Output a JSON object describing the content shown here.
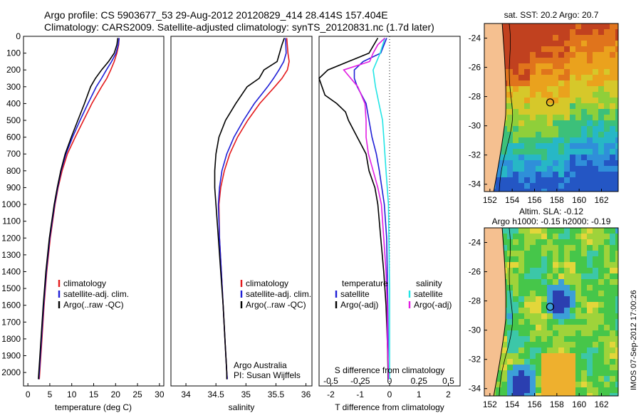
{
  "header": {
    "line1": "Argo profile: CS 5903677_53 29-Aug-2012 20120829_414 28.414S 157.404E",
    "line2": "Climatology: CARS2009. Satellite-adjusted climatology: synTS_20120831.nc (1.7d later)"
  },
  "colors": {
    "climatology": "#e41a1c",
    "satellite": "#1f1fd6",
    "argo": "#000000",
    "sat_salinity": "#22e5e5",
    "argo_salinity": "#e21ee2",
    "land": "#f5c090",
    "ocean_warm": "#e9a21a"
  },
  "chart_data": [
    {
      "type": "line",
      "name": "temperature_profile",
      "xlabel": "temperature (deg C)",
      "ylabel": "",
      "xlim": [
        -1,
        31
      ],
      "ylim": [
        0,
        2080
      ],
      "y_inverted": true,
      "xticks": [
        0,
        5,
        10,
        15,
        20,
        25,
        30
      ],
      "yticks": [
        0,
        100,
        200,
        300,
        400,
        500,
        600,
        700,
        800,
        900,
        1000,
        1100,
        1200,
        1300,
        1400,
        1500,
        1600,
        1700,
        1800,
        1900,
        2000
      ],
      "legend": [
        "climatology",
        "satellite-adj. clim.",
        "Argo(..raw -QC)"
      ],
      "series": [
        {
          "name": "climatology",
          "y": [
            10,
            50,
            100,
            150,
            200,
            250,
            300,
            400,
            500,
            600,
            700,
            800,
            900,
            1000,
            1200,
            1400,
            1600,
            1800,
            2000,
            2040
          ],
          "x": [
            20.8,
            20.7,
            20.3,
            19.7,
            18.9,
            18.0,
            16.8,
            14.6,
            12.7,
            10.8,
            9.0,
            7.8,
            6.9,
            6.2,
            5.1,
            4.3,
            3.7,
            3.2,
            2.7,
            2.6
          ]
        },
        {
          "name": "satellite",
          "y": [
            10,
            50,
            100,
            150,
            200,
            250,
            300,
            400,
            500,
            600,
            700,
            800,
            900,
            1000,
            1200,
            1400,
            1600,
            1800,
            2000,
            2040
          ],
          "x": [
            20.8,
            20.6,
            20.1,
            19.1,
            17.9,
            16.8,
            15.6,
            13.7,
            11.9,
            10.2,
            8.7,
            7.6,
            6.8,
            6.1,
            5.0,
            4.2,
            3.6,
            3.1,
            2.6,
            2.5
          ]
        },
        {
          "name": "argo",
          "y": [
            10,
            50,
            100,
            150,
            200,
            250,
            300,
            400,
            500,
            600,
            700,
            800,
            900,
            1000,
            1200,
            1400,
            1600,
            1800,
            2000,
            2040
          ],
          "x": [
            20.5,
            20.3,
            19.7,
            18.4,
            16.8,
            15.4,
            14.3,
            12.9,
            11.4,
            9.9,
            8.5,
            7.5,
            6.7,
            6.0,
            4.9,
            4.1,
            3.5,
            3.0,
            2.5,
            2.4
          ]
        }
      ]
    },
    {
      "type": "line",
      "name": "salinity_profile",
      "xlabel": "salinity",
      "ylabel": "",
      "xlim": [
        33.75,
        36.1
      ],
      "ylim": [
        0,
        2080
      ],
      "y_inverted": true,
      "xticks": [
        34,
        34.5,
        35,
        35.5,
        36
      ],
      "legend": [
        "climatology",
        "satellite-adj. clim.",
        "Argo(..raw -QC)"
      ],
      "annotation": [
        "Argo Australia",
        "PI: Susan Wijffels"
      ],
      "series": [
        {
          "name": "climatology",
          "y": [
            10,
            100,
            150,
            200,
            250,
            300,
            400,
            500,
            600,
            700,
            800,
            900,
            1000,
            1200,
            1400,
            1600,
            1800,
            2000,
            2040
          ],
          "x": [
            35.68,
            35.7,
            35.72,
            35.69,
            35.6,
            35.48,
            35.23,
            35.03,
            34.86,
            34.73,
            34.64,
            34.58,
            34.55,
            34.56,
            34.59,
            34.62,
            34.65,
            34.68,
            34.69
          ]
        },
        {
          "name": "satellite",
          "y": [
            10,
            100,
            150,
            200,
            250,
            300,
            400,
            500,
            600,
            700,
            800,
            900,
            1000,
            1200,
            1400,
            1600,
            1800,
            2000,
            2040
          ],
          "x": [
            35.66,
            35.67,
            35.63,
            35.55,
            35.46,
            35.36,
            35.14,
            34.96,
            34.8,
            34.68,
            34.6,
            34.56,
            34.54,
            34.56,
            34.59,
            34.62,
            34.65,
            34.68,
            34.69
          ]
        },
        {
          "name": "argo",
          "y": [
            10,
            50,
            100,
            150,
            200,
            250,
            300,
            400,
            500,
            600,
            700,
            800,
            900,
            1000,
            1200,
            1400,
            1600,
            1800,
            2000,
            2040
          ],
          "x": [
            35.64,
            35.6,
            35.56,
            35.52,
            35.3,
            35.22,
            35.02,
            34.83,
            34.66,
            34.55,
            34.5,
            34.48,
            34.48,
            34.5,
            34.54,
            34.58,
            34.62,
            34.65,
            34.68,
            34.68
          ]
        }
      ]
    },
    {
      "type": "line",
      "name": "difference_profile",
      "xlabel": "T difference from climatology",
      "x2label": "S difference from climatology",
      "xlim": [
        -2.4,
        2.4
      ],
      "ylim": [
        0,
        2080
      ],
      "y_inverted": true,
      "xticks": [
        -2,
        -1,
        0,
        1,
        2
      ],
      "x2ticks": [
        -0.5,
        -0.25,
        0,
        0.25,
        0.5
      ],
      "legend_temperature": [
        "temperature",
        "satellite",
        "Argo(-adj)"
      ],
      "legend_salinity": [
        "salinity",
        "satellite",
        "Argo(-adj)"
      ],
      "series": [
        {
          "name": "T satellite",
          "y": [
            10,
            100,
            150,
            200,
            250,
            300,
            400,
            500,
            600,
            700,
            800,
            1000,
            1200,
            1400,
            1600,
            1800,
            2000,
            2040
          ],
          "x": [
            -0.1,
            -0.3,
            -0.9,
            -1.2,
            -1.2,
            -1.1,
            -0.8,
            -0.7,
            -0.6,
            -0.45,
            -0.35,
            -0.18,
            -0.1,
            -0.08,
            -0.06,
            -0.05,
            -0.05,
            -0.05
          ]
        },
        {
          "name": "T argo",
          "y": [
            10,
            100,
            150,
            200,
            250,
            300,
            350,
            400,
            450,
            500,
            600,
            700,
            800,
            900,
            1000,
            1200,
            1400,
            1600,
            1800,
            2000,
            2040
          ],
          "x": [
            -0.4,
            -0.7,
            -1.4,
            -2.1,
            -2.4,
            -2.3,
            -2.2,
            -1.8,
            -1.5,
            -1.4,
            -1.1,
            -0.8,
            -0.7,
            -0.5,
            -0.4,
            -0.3,
            -0.2,
            -0.12,
            -0.08,
            -0.05,
            -0.05
          ]
        },
        {
          "name": "S satellite",
          "y": [
            10,
            100,
            200,
            300,
            400,
            500,
            600,
            800,
            1000,
            1500,
            2000,
            2040
          ],
          "x": [
            -0.04,
            -0.08,
            -0.14,
            -0.12,
            -0.09,
            -0.06,
            -0.05,
            -0.03,
            -0.01,
            0.0,
            0.0,
            0.0
          ]
        },
        {
          "name": "S argo",
          "y": [
            10,
            50,
            100,
            150,
            200,
            300,
            400,
            500,
            600,
            700,
            800,
            900,
            1000,
            1200,
            1400,
            1600,
            1800,
            2000,
            2040
          ],
          "x": [
            -0.04,
            -0.1,
            -0.14,
            -0.17,
            -0.39,
            -0.27,
            -0.21,
            -0.2,
            -0.2,
            -0.18,
            -0.14,
            -0.1,
            -0.07,
            -0.05,
            -0.03,
            -0.02,
            -0.02,
            -0.01,
            -0.01
          ]
        }
      ]
    },
    {
      "type": "heatmap",
      "name": "sst_map",
      "title": "sat. SST: 20.2 Argo: 20.7",
      "xlim": [
        151.5,
        163.5
      ],
      "ylim": [
        -34.5,
        -23
      ],
      "xticks": [
        152,
        154,
        156,
        158,
        160,
        162
      ],
      "yticks": [
        -24,
        -26,
        -28,
        -30,
        -32,
        -34
      ],
      "marker": {
        "lon": 157.4,
        "lat": -28.4
      }
    },
    {
      "type": "heatmap",
      "name": "sla_map",
      "title": "Altim. SLA: -0.12",
      "subtitle": "Argo h1000: -0.15 h2000: -0.19",
      "xlim": [
        151.5,
        163.5
      ],
      "ylim": [
        -34.5,
        -23
      ],
      "xticks": [
        152,
        154,
        156,
        158,
        160,
        162
      ],
      "yticks": [
        -24,
        -26,
        -28,
        -30,
        -32,
        -34
      ],
      "marker": {
        "lon": 157.4,
        "lat": -28.4
      }
    }
  ],
  "stamp": "IMOS 07-Sep-2012 17:00:26"
}
